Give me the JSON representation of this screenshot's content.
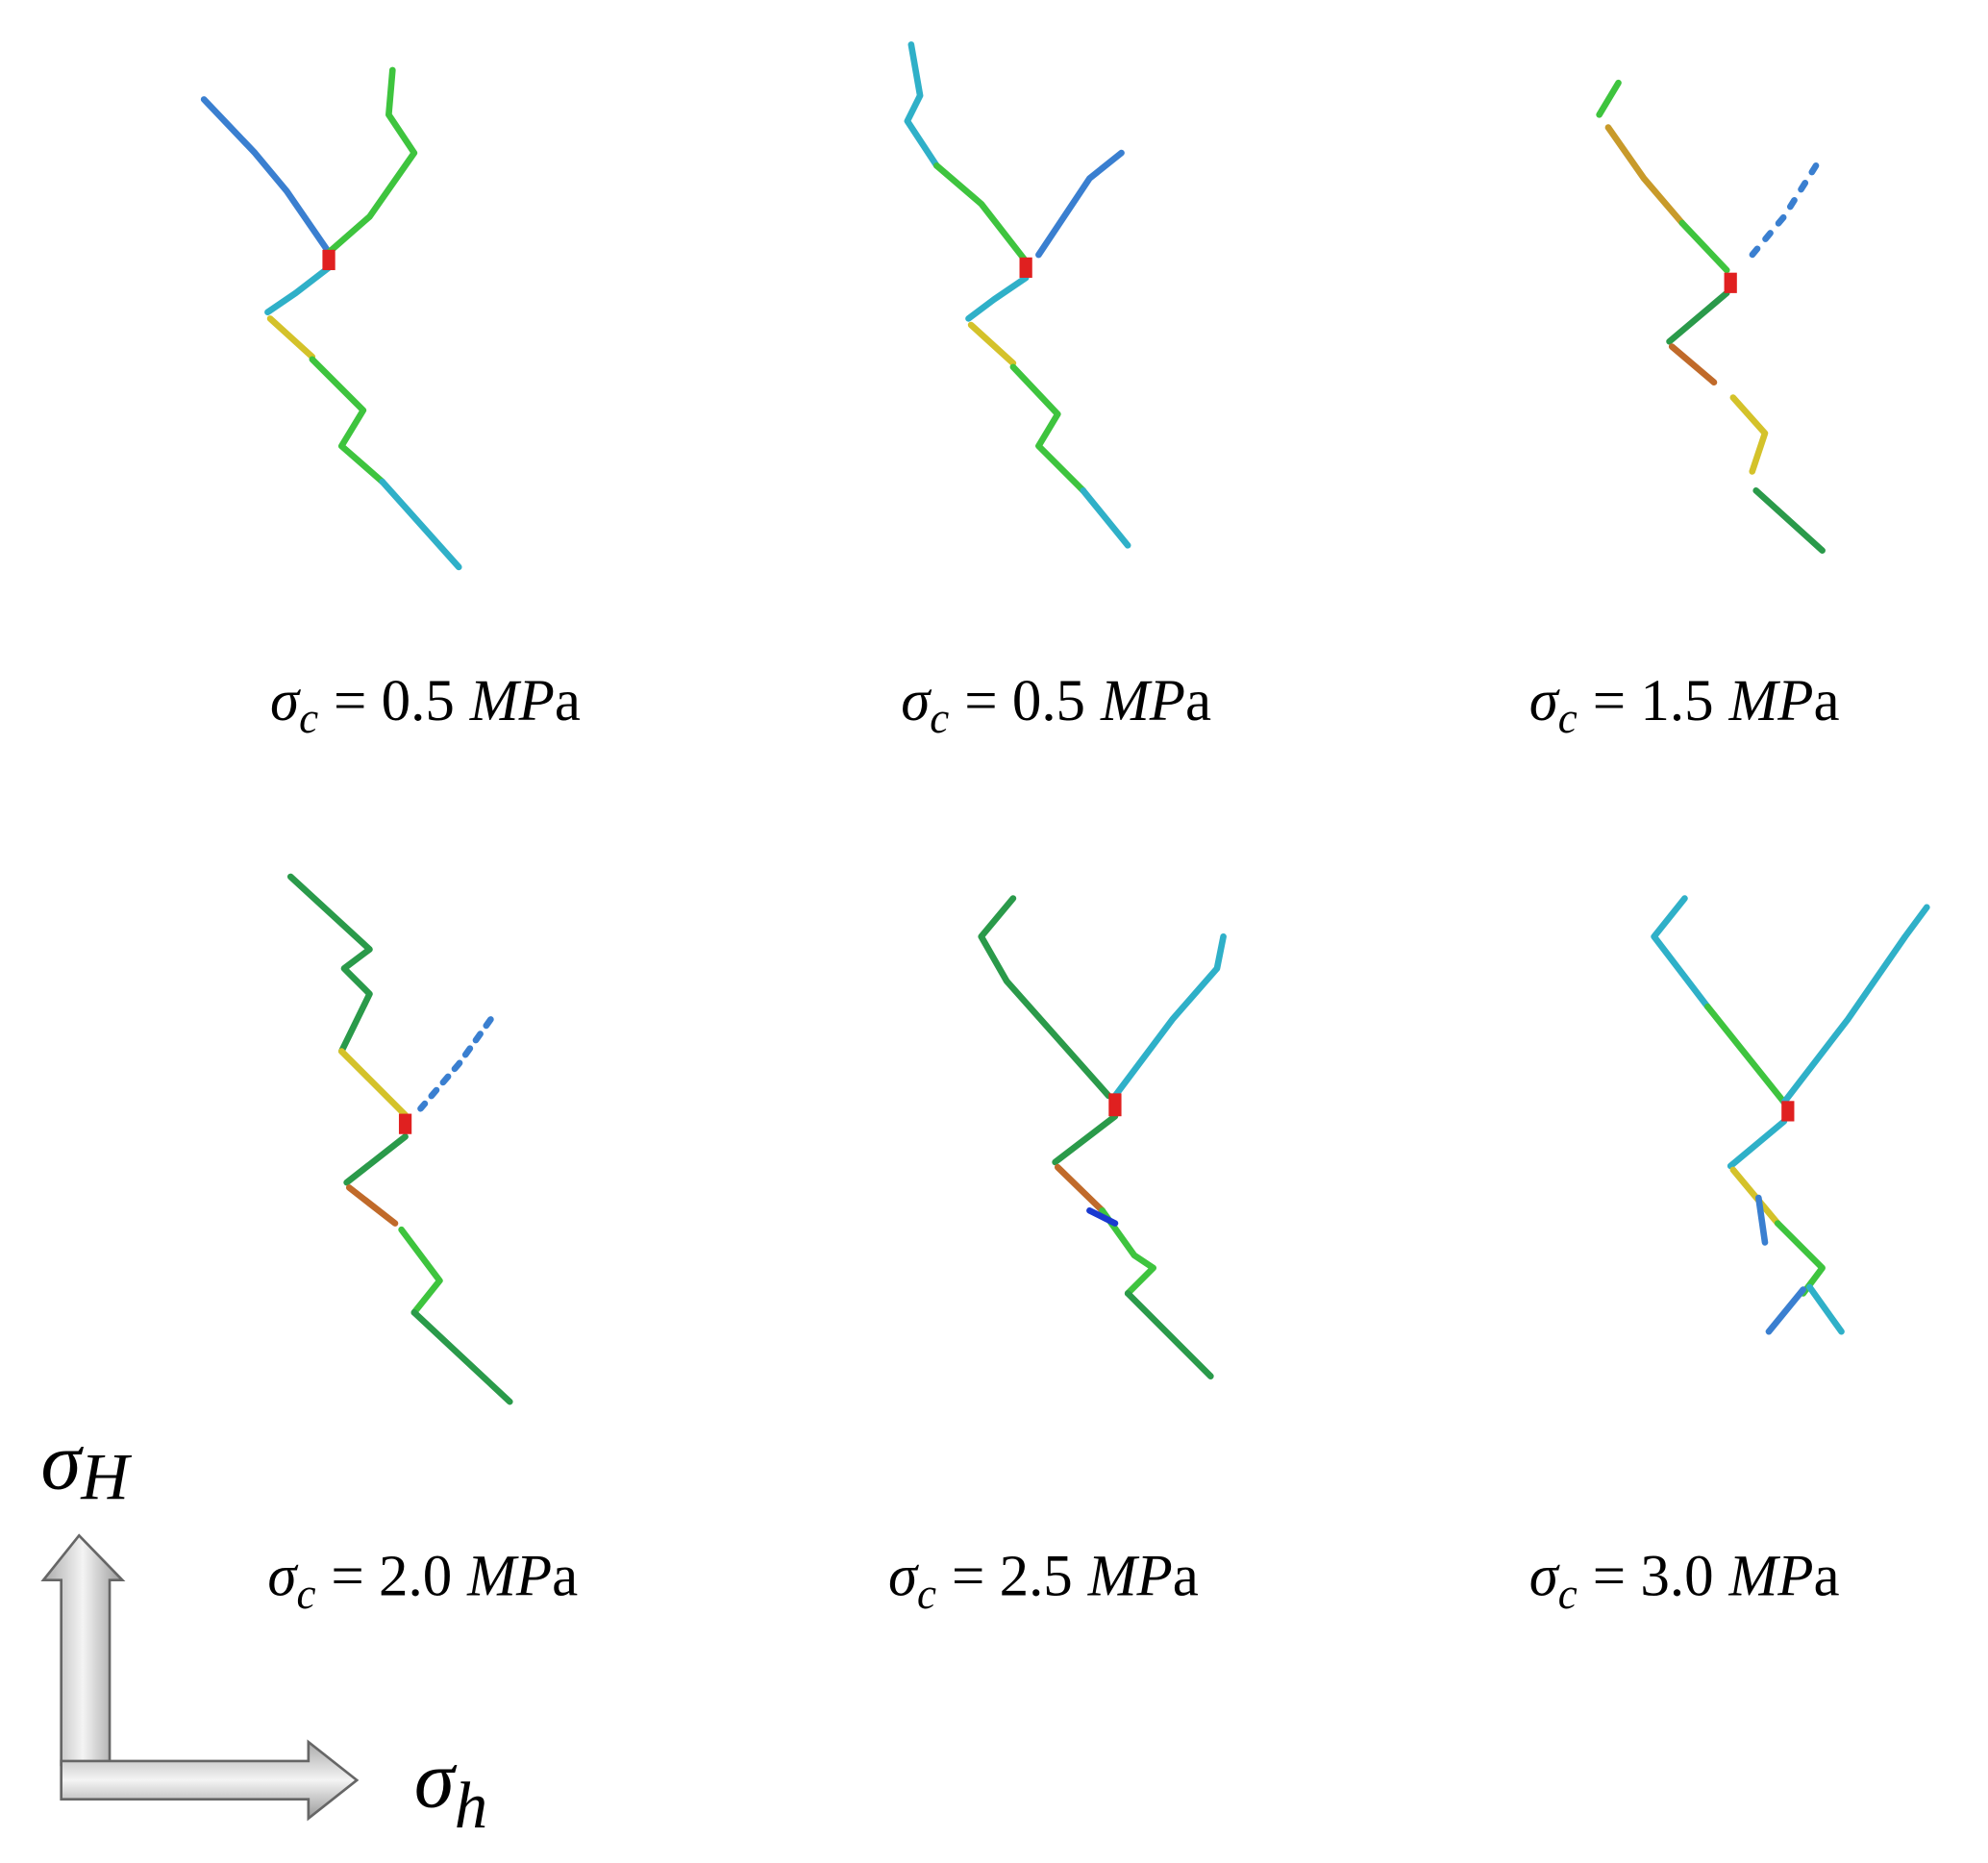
{
  "panels": [
    {
      "symbol": "σ",
      "subscript": "c",
      "value": "= 0.5",
      "unit_italic": "MP",
      "unit": "a"
    },
    {
      "symbol": "σ",
      "subscript": "c",
      "value": "= 0.5",
      "unit_italic": "MP",
      "unit": "a"
    },
    {
      "symbol": "σ",
      "subscript": "c",
      "value": "= 1.5",
      "unit_italic": "MP",
      "unit": "a"
    },
    {
      "symbol": "σ",
      "subscript": "c",
      "value": "= 2.0",
      "unit_italic": "MP",
      "unit": "a"
    },
    {
      "symbol": "σ",
      "subscript": "c",
      "value": "= 2.5",
      "unit_italic": "MP",
      "unit": "a"
    },
    {
      "symbol": "σ",
      "subscript": "c",
      "value": "= 3.0",
      "unit_italic": "MP",
      "unit": "a"
    }
  ],
  "axes": {
    "vertical": {
      "symbol": "σ",
      "subscript": "H"
    },
    "horizontal": {
      "symbol": "σ",
      "subscript": "h"
    }
  }
}
